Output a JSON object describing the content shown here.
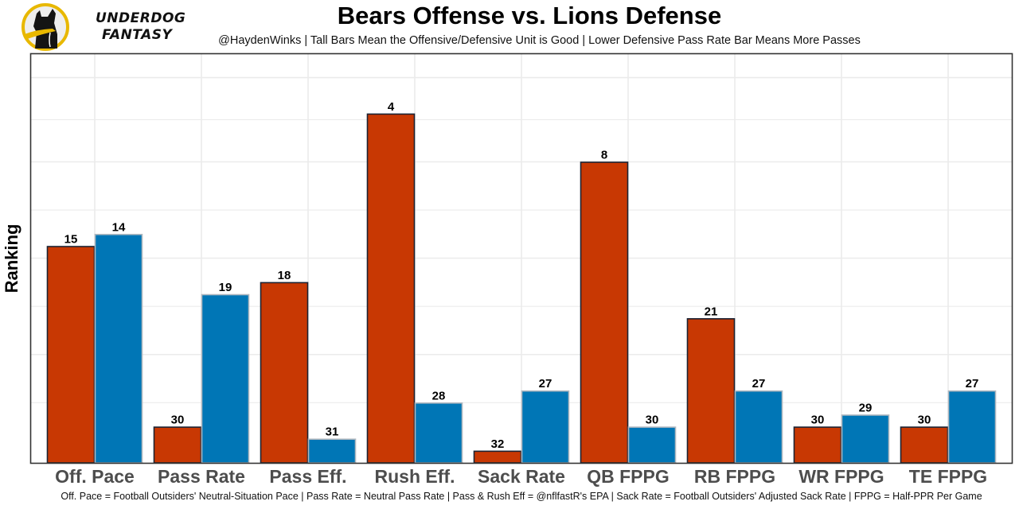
{
  "branding": {
    "logo_line1": "UNDERDOG",
    "logo_line2": "FANTASY",
    "logo_icon": "underdog-dog-icon"
  },
  "chart_data": {
    "type": "bar",
    "title": "Bears Offense vs. Lions Defense",
    "subtitle": "@HaydenWinks | Tall Bars Mean the Offensive/Defensive Unit is Good | Lower Defensive Pass Rate Bar Means More Passes",
    "xlabel": "",
    "ylabel": "Ranking",
    "caption": "Off. Pace = Football Outsiders' Neutral-Situation Pace | Pass Rate = Neutral Pass Rate | Pass & Rush Eff = @nflfastR's EPA | Sack Rate = Football Outsiders' Adjusted Sack Rate | FPPG = Half-PPR Per Game",
    "categories": [
      "Off. Pace",
      "Pass Rate",
      "Pass Eff.",
      "Rush Eff.",
      "Sack Rate",
      "QB FPPG",
      "RB FPPG",
      "WR FPPG",
      "TE FPPG"
    ],
    "series": [
      {
        "name": "Bears Offense",
        "color": "#c83803",
        "border": "#1c2333",
        "values": [
          15,
          30,
          18,
          4,
          32,
          8,
          21,
          30,
          30
        ]
      },
      {
        "name": "Lions Defense",
        "color": "#0076b6",
        "border": "#b0b7bf",
        "values": [
          14,
          19,
          31,
          28,
          27,
          30,
          27,
          29,
          27
        ]
      }
    ],
    "y_scale": "inverted rank (bar height = 33 - rank)",
    "ylim_rank": [
      33,
      -1
    ],
    "grid": true,
    "legend": "none"
  }
}
